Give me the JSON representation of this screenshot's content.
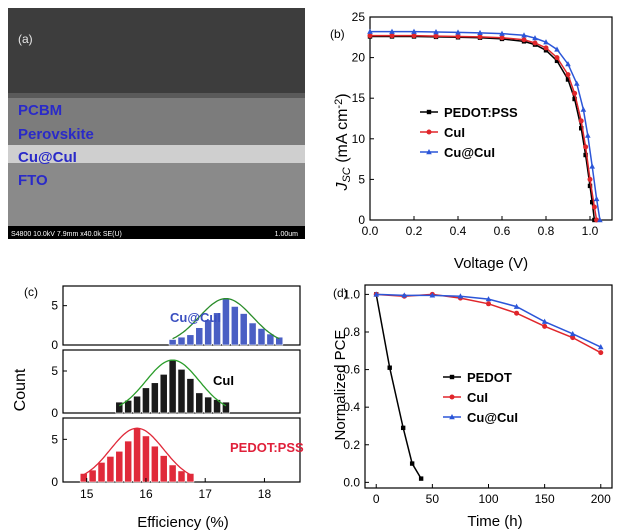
{
  "panel_labels": {
    "a": "(a)",
    "b": "(b)",
    "c": "(c)",
    "d": "(d)"
  },
  "sem": {
    "layers": [
      "PCBM",
      "Perovskite",
      "Cu@CuI",
      "FTO"
    ],
    "info_bar": "S4800 10.0kV 7.9mm x40.0k SE(U)",
    "scale_bar": "1.00um",
    "colors": {
      "top": "#3d3d3d",
      "perovskite": "#7c7c7c",
      "cu_cui": "#cfcfcf",
      "fto": "#8a8a8a",
      "bar": "#000000"
    }
  },
  "chart_data": [
    {
      "panel": "b",
      "type": "line",
      "xlabel": "Voltage (V)",
      "ylabel_parts": {
        "j": "J",
        "sub": "SC",
        "unit": " (mA cm",
        "sup": "-2",
        "close": ")"
      },
      "xlim": [
        0.0,
        1.1
      ],
      "ylim": [
        0,
        25
      ],
      "xticks": [
        "0.0",
        "0.2",
        "0.4",
        "0.6",
        "0.8",
        "1.0"
      ],
      "xtick_values": [
        0.0,
        0.2,
        0.4,
        0.6,
        0.8,
        1.0
      ],
      "yticks": [
        "0",
        "5",
        "10",
        "15",
        "20",
        "25"
      ],
      "ytick_values": [
        0,
        5,
        10,
        15,
        20,
        25
      ],
      "legend_position": "center",
      "series": [
        {
          "name": "PEDOT:PSS",
          "color": "#000000",
          "marker": "square",
          "points": [
            [
              0,
              22.6
            ],
            [
              0.1,
              22.6
            ],
            [
              0.2,
              22.6
            ],
            [
              0.3,
              22.55
            ],
            [
              0.4,
              22.5
            ],
            [
              0.5,
              22.45
            ],
            [
              0.6,
              22.3
            ],
            [
              0.7,
              22.0
            ],
            [
              0.75,
              21.6
            ],
            [
              0.8,
              20.9
            ],
            [
              0.85,
              19.6
            ],
            [
              0.9,
              17.3
            ],
            [
              0.93,
              14.9
            ],
            [
              0.96,
              11.3
            ],
            [
              0.98,
              8.0
            ],
            [
              1.0,
              4.2
            ],
            [
              1.01,
              2.2
            ],
            [
              1.02,
              0
            ]
          ]
        },
        {
          "name": "CuI",
          "color": "#e0262b",
          "marker": "circle",
          "points": [
            [
              0,
              22.7
            ],
            [
              0.1,
              22.7
            ],
            [
              0.2,
              22.7
            ],
            [
              0.3,
              22.65
            ],
            [
              0.4,
              22.6
            ],
            [
              0.5,
              22.55
            ],
            [
              0.6,
              22.45
            ],
            [
              0.7,
              22.2
            ],
            [
              0.75,
              21.8
            ],
            [
              0.8,
              21.2
            ],
            [
              0.85,
              20.0
            ],
            [
              0.9,
              17.9
            ],
            [
              0.93,
              15.6
            ],
            [
              0.96,
              12.2
            ],
            [
              0.98,
              9.0
            ],
            [
              1.0,
              5.0
            ],
            [
              1.02,
              1.6
            ],
            [
              1.03,
              0
            ]
          ]
        },
        {
          "name": "Cu@CuI",
          "color": "#2c56d8",
          "marker": "triangle",
          "points": [
            [
              0,
              23.2
            ],
            [
              0.1,
              23.2
            ],
            [
              0.2,
              23.2
            ],
            [
              0.3,
              23.15
            ],
            [
              0.4,
              23.1
            ],
            [
              0.5,
              23.05
            ],
            [
              0.6,
              22.95
            ],
            [
              0.7,
              22.75
            ],
            [
              0.75,
              22.4
            ],
            [
              0.8,
              21.9
            ],
            [
              0.85,
              21.0
            ],
            [
              0.9,
              19.2
            ],
            [
              0.94,
              16.8
            ],
            [
              0.97,
              13.6
            ],
            [
              0.99,
              10.4
            ],
            [
              1.01,
              6.6
            ],
            [
              1.03,
              2.6
            ],
            [
              1.045,
              0
            ]
          ]
        }
      ]
    },
    {
      "panel": "c",
      "type": "bar",
      "xlabel": "Efficiency (%)",
      "ylabel": "Count",
      "xlim": [
        14.6,
        18.6
      ],
      "xticks": [
        "15",
        "16",
        "17",
        "18"
      ],
      "xtick_values": [
        15,
        16,
        17,
        18
      ],
      "bin_width": 0.12,
      "subplots": [
        {
          "name": "Cu@CuI",
          "color": "#4a5fc4",
          "label_color": "#3a4fc0",
          "ylim": [
            0,
            7.5
          ],
          "yticks": [
            "0",
            "5"
          ],
          "ytick_values": [
            0,
            5
          ],
          "bins": [
            16.45,
            16.6,
            16.75,
            16.9,
            17.05,
            17.2,
            17.35,
            17.5,
            17.65,
            17.8,
            17.95,
            18.1,
            18.25
          ],
          "values": [
            0.7,
            1.0,
            1.3,
            2.2,
            3.2,
            4.1,
            5.9,
            4.9,
            4.0,
            2.8,
            2.1,
            1.4,
            1.0
          ]
        },
        {
          "name": "CuI",
          "color": "#1a1a1a",
          "label_color": "#000000",
          "ylim": [
            0,
            7.5
          ],
          "yticks": [
            "0",
            "5"
          ],
          "ytick_values": [
            0,
            5
          ],
          "bins": [
            15.55,
            15.7,
            15.85,
            16.0,
            16.15,
            16.3,
            16.45,
            16.6,
            16.75,
            16.9,
            17.05,
            17.2,
            17.35
          ],
          "values": [
            1.3,
            1.5,
            2.0,
            3.0,
            3.6,
            4.6,
            6.3,
            5.2,
            4.1,
            2.4,
            1.9,
            1.6,
            1.3
          ]
        },
        {
          "name": "PEDOT:PSS",
          "color": "#e02a3a",
          "label_color": "#e0203a",
          "ylim": [
            0,
            7.5
          ],
          "yticks": [
            "0",
            "5"
          ],
          "ytick_values": [
            0,
            5
          ],
          "bins": [
            14.95,
            15.1,
            15.25,
            15.4,
            15.55,
            15.7,
            15.85,
            16.0,
            16.15,
            16.3,
            16.45,
            16.6,
            16.75
          ],
          "values": [
            1.0,
            1.4,
            2.3,
            3.0,
            3.6,
            4.8,
            6.3,
            5.4,
            4.2,
            3.1,
            2.0,
            1.3,
            1.0
          ]
        }
      ]
    },
    {
      "panel": "d",
      "type": "line",
      "xlabel": "Time (h)",
      "ylabel": "Normalized PCE",
      "xlim": [
        -10,
        210
      ],
      "ylim": [
        -0.03,
        1.05
      ],
      "xticks": [
        "0",
        "50",
        "100",
        "150",
        "200"
      ],
      "xtick_values": [
        0,
        50,
        100,
        150,
        200
      ],
      "yticks": [
        "0.0",
        "0.2",
        "0.4",
        "0.6",
        "0.8",
        "1.0"
      ],
      "ytick_values": [
        0.0,
        0.2,
        0.4,
        0.6,
        0.8,
        1.0
      ],
      "legend_position": "center",
      "series": [
        {
          "name": "PEDOT",
          "color": "#000000",
          "marker": "square",
          "points": [
            [
              0,
              1.0
            ],
            [
              12,
              0.61
            ],
            [
              24,
              0.29
            ],
            [
              32,
              0.1
            ],
            [
              40,
              0.02
            ]
          ]
        },
        {
          "name": "CuI",
          "color": "#e0262b",
          "marker": "circle",
          "points": [
            [
              0,
              1.0
            ],
            [
              25,
              0.99
            ],
            [
              50,
              1.0
            ],
            [
              75,
              0.98
            ],
            [
              100,
              0.95
            ],
            [
              125,
              0.9
            ],
            [
              150,
              0.83
            ],
            [
              175,
              0.77
            ],
            [
              200,
              0.69
            ]
          ]
        },
        {
          "name": "Cu@CuI",
          "color": "#2c56d8",
          "marker": "triangle",
          "points": [
            [
              0,
              1.0
            ],
            [
              25,
              0.995
            ],
            [
              50,
              0.995
            ],
            [
              75,
              0.99
            ],
            [
              100,
              0.975
            ],
            [
              125,
              0.935
            ],
            [
              150,
              0.855
            ],
            [
              175,
              0.79
            ],
            [
              200,
              0.72
            ]
          ]
        }
      ]
    }
  ]
}
